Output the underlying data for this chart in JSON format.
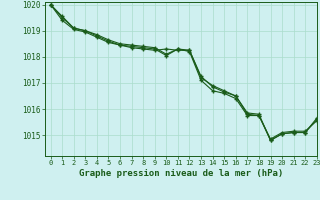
{
  "bg_color": "#cff0f0",
  "grid_color": "#aaddcc",
  "line_color": "#1a5c1a",
  "text_color": "#1a5c1a",
  "title": "Graphe pression niveau de la mer (hPa)",
  "xlim": [
    -0.5,
    23
  ],
  "ylim": [
    1014.2,
    1020.1
  ],
  "yticks": [
    1015,
    1016,
    1017,
    1018,
    1019,
    1020
  ],
  "xticks": [
    0,
    1,
    2,
    3,
    4,
    5,
    6,
    7,
    8,
    9,
    10,
    11,
    12,
    13,
    14,
    15,
    16,
    17,
    18,
    19,
    20,
    21,
    22,
    23
  ],
  "series1_x": [
    0,
    1,
    2,
    3,
    4,
    5,
    6,
    7,
    8,
    9,
    10,
    11,
    12,
    13,
    14,
    15,
    16,
    17,
    18,
    19,
    20,
    21,
    22,
    23
  ],
  "series1_y": [
    1020.0,
    1019.55,
    1019.1,
    1019.0,
    1018.85,
    1018.65,
    1018.5,
    1018.45,
    1018.4,
    1018.35,
    1018.1,
    1018.3,
    1018.25,
    1017.25,
    1016.85,
    1016.65,
    1016.5,
    1015.85,
    1015.8,
    1014.8,
    1015.05,
    1015.1,
    1015.1,
    1015.65
  ],
  "series2_x": [
    0,
    1,
    2,
    3,
    4,
    5,
    6,
    7,
    8,
    9,
    10,
    11,
    12,
    13,
    14,
    15,
    16,
    17,
    18,
    19,
    20,
    21,
    22,
    23
  ],
  "series2_y": [
    1020.0,
    1019.5,
    1019.1,
    1019.0,
    1018.8,
    1018.6,
    1018.45,
    1018.4,
    1018.35,
    1018.3,
    1018.05,
    1018.3,
    1018.2,
    1017.1,
    1016.7,
    1016.6,
    1016.4,
    1015.75,
    1015.75,
    1014.8,
    1015.05,
    1015.1,
    1015.1,
    1015.6
  ],
  "series3_x": [
    0,
    1,
    2,
    3,
    4,
    5,
    6,
    7,
    8,
    9,
    10,
    11,
    12,
    13,
    14,
    15,
    16,
    17,
    18,
    19,
    20,
    21,
    22,
    23
  ],
  "series3_y": [
    1020.0,
    1019.4,
    1019.05,
    1018.95,
    1018.75,
    1018.55,
    1018.45,
    1018.35,
    1018.3,
    1018.25,
    1018.3,
    1018.25,
    1018.25,
    1017.2,
    1016.9,
    1016.7,
    1016.5,
    1015.8,
    1015.75,
    1014.85,
    1015.1,
    1015.15,
    1015.15,
    1015.55
  ]
}
